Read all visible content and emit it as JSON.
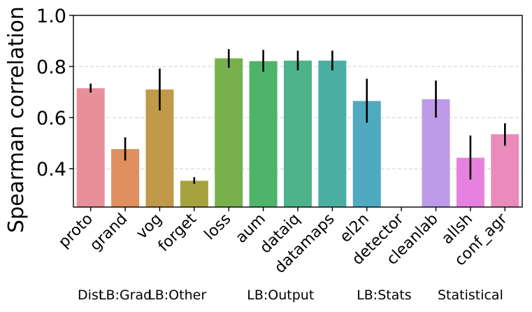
{
  "chart_data": {
    "type": "bar",
    "title": "",
    "xlabel": "",
    "ylabel": "Spearman correlation",
    "ylim": [
      0.25,
      1.0
    ],
    "yticks": [
      0.4,
      0.6,
      0.8,
      1.0
    ],
    "ytick_labels": [
      "0.4",
      "0.6",
      "0.8",
      "1.0"
    ],
    "grid": "horizontal dashed",
    "categories": [
      "proto",
      "grand",
      "vog",
      "forget",
      "loss",
      "aum",
      "dataiq",
      "datamaps",
      "el2n",
      "detector",
      "cleanlab",
      "allsh",
      "conf_agr"
    ],
    "values": [
      0.715,
      0.477,
      0.71,
      0.353,
      0.832,
      0.821,
      0.823,
      0.823,
      0.665,
      null,
      0.672,
      0.443,
      0.535
    ],
    "error_low": [
      0.698,
      0.432,
      0.628,
      0.341,
      0.795,
      0.78,
      0.785,
      0.785,
      0.58,
      null,
      0.6,
      0.358,
      0.49
    ],
    "error_high": [
      0.733,
      0.523,
      0.792,
      0.367,
      0.868,
      0.865,
      0.862,
      0.862,
      0.752,
      null,
      0.745,
      0.53,
      0.578
    ],
    "colors": [
      "#e8909a",
      "#e0905e",
      "#c09a4a",
      "#a6a33e",
      "#78b14c",
      "#4fb46a",
      "#4cb38a",
      "#4aaea2",
      "#4fa9c0",
      "#8fa6e6",
      "#bd9ae8",
      "#e681e0",
      "#e98cbc"
    ],
    "groups": [
      {
        "label": "Dist",
        "members": [
          "proto"
        ]
      },
      {
        "label": "LB:Grad",
        "members": [
          "grand"
        ]
      },
      {
        "label": "LB:Other",
        "members": [
          "vog",
          "forget"
        ]
      },
      {
        "label": "LB:Output",
        "members": [
          "loss",
          "aum",
          "dataiq",
          "datamaps"
        ]
      },
      {
        "label": "LB:Stats",
        "members": [
          "el2n",
          "detector"
        ]
      },
      {
        "label": "Statistical",
        "members": [
          "cleanlab",
          "allsh",
          "conf_agr"
        ]
      }
    ]
  }
}
